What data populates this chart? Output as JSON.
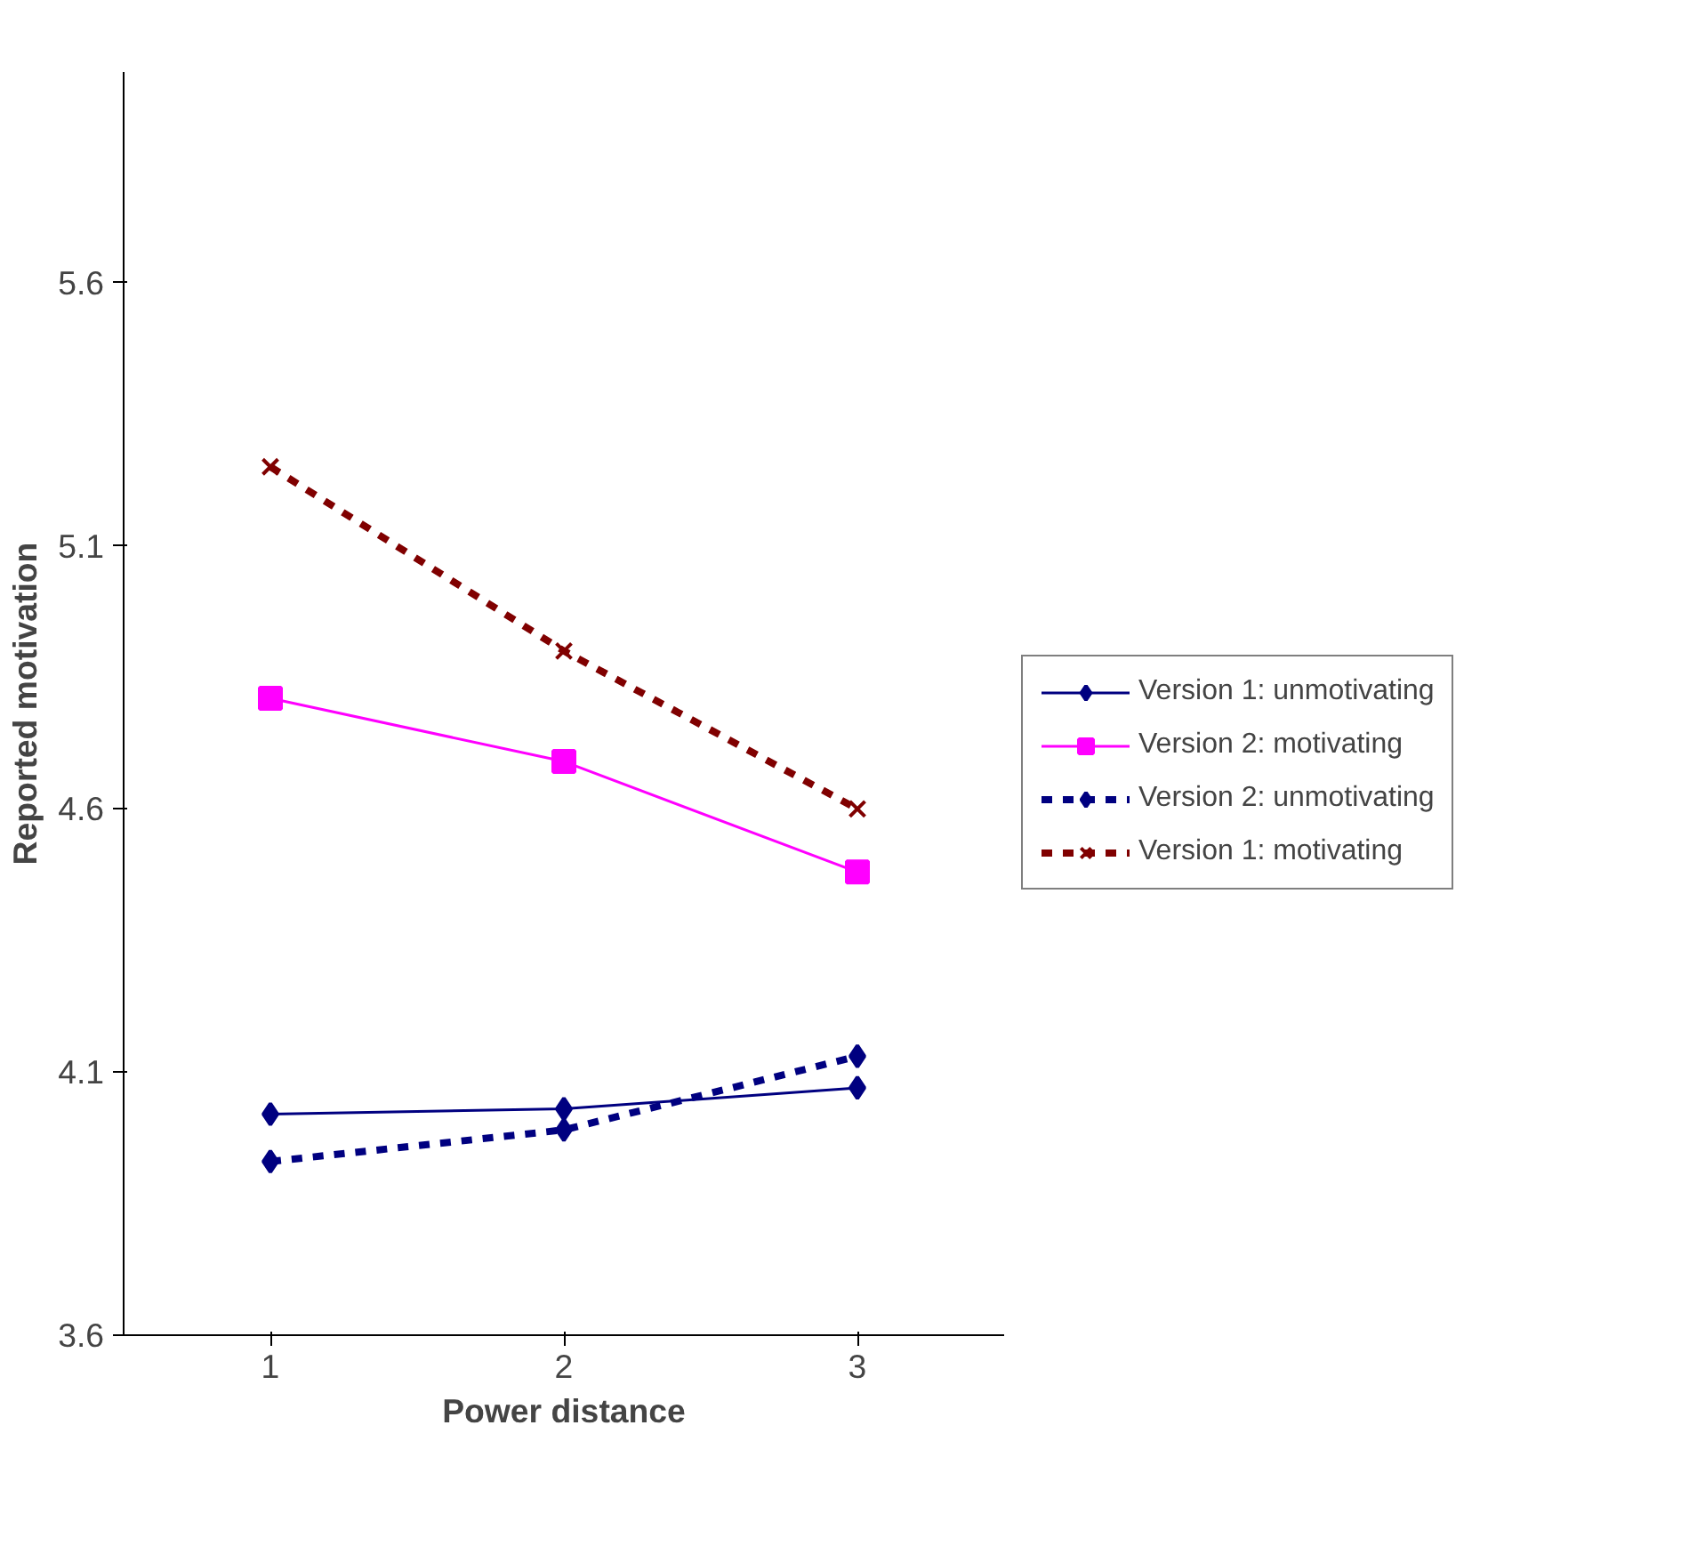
{
  "chart_data": {
    "type": "line",
    "xlabel": "Power distance",
    "ylabel": "Reported motivation",
    "categories": [
      "1",
      "2",
      "3"
    ],
    "ylim": [
      3.6,
      6.0
    ],
    "yticks": [
      3.6,
      4.1,
      4.6,
      5.1,
      5.6
    ],
    "grid": false,
    "legend": "right",
    "series": [
      {
        "name": "Version 1: unmotivating",
        "color": "#000080",
        "values": [
          4.02,
          4.03,
          4.07
        ],
        "marker": "diamond",
        "line_style": "solid"
      },
      {
        "name": "Version 2: motivating",
        "color": "#ff00ff",
        "values": [
          4.81,
          4.69,
          4.48
        ],
        "marker": "square",
        "line_style": "solid"
      },
      {
        "name": "Version 2: unmotivating",
        "color": "#000080",
        "values": [
          3.93,
          3.99,
          4.13
        ],
        "marker": "diamond",
        "line_style": "dashed"
      },
      {
        "name": "Version 1: motivating",
        "color": "#800000",
        "values": [
          5.25,
          4.9,
          4.6
        ],
        "marker": "cross",
        "line_style": "dashed"
      }
    ]
  }
}
